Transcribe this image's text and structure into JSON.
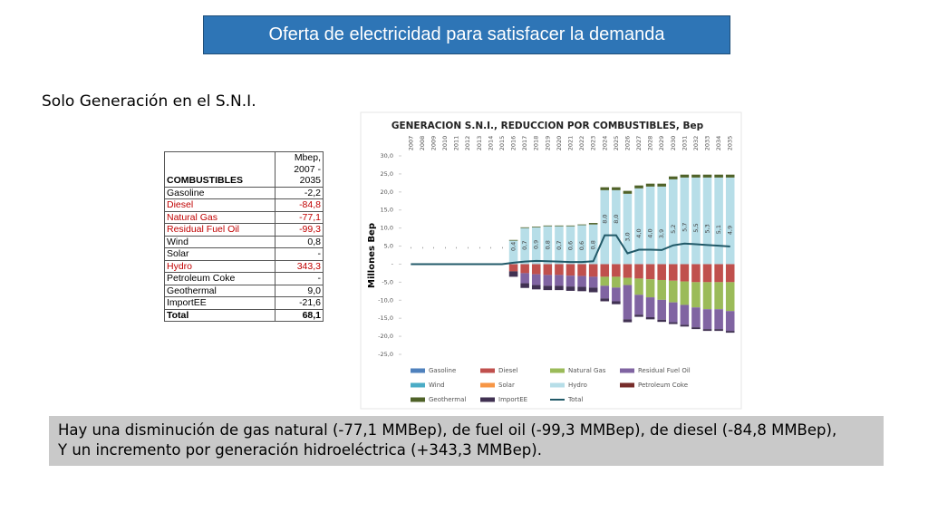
{
  "header": {
    "title": "Oferta de electricidad para satisfacer la demanda",
    "subtitle": "Solo Generación en el S.N.I."
  },
  "table": {
    "header": [
      "COMBUSTIBLES",
      "Mbep, 2007 - 2035"
    ],
    "rows": [
      [
        "Gasoline",
        "-2,2"
      ],
      [
        "Diesel",
        "-84,8"
      ],
      [
        "Natural Gas",
        "-77,1"
      ],
      [
        "Residual Fuel Oil",
        "-99,3"
      ],
      [
        "Wind",
        "0,8"
      ],
      [
        "Solar",
        "-"
      ],
      [
        "Hydro",
        "343,3"
      ],
      [
        "Petroleum Coke",
        "-"
      ],
      [
        "Geothermal",
        "9,0"
      ],
      [
        "ImportEE",
        "-21,6"
      ],
      [
        "Total",
        "68,1"
      ]
    ]
  },
  "note": [
    "Hay una disminución de gas natural (-77,1 MMBep), de fuel oil (-99,3 MMBep), de diesel (-84,8 MMBep),",
    "Y un incremento por generación hidroeléctrica (+343,3 MMBep)."
  ],
  "chart_data": {
    "type": "stacked_bar",
    "title": "GENERACION S.N.I., REDUCCION POR COMBUSTIBLES, Bep",
    "ylabel": "Millones Bep",
    "categories": [
      "2007",
      "2008",
      "2009",
      "2010",
      "2011",
      "2012",
      "2013",
      "2014",
      "2015",
      "2016",
      "2017",
      "2018",
      "2019",
      "2020",
      "2021",
      "2022",
      "2023",
      "2024",
      "2025",
      "2026",
      "2027",
      "2028",
      "2029",
      "2030",
      "2031",
      "2032",
      "2033",
      "2034",
      "2035"
    ],
    "ylim": [
      -25,
      30
    ],
    "yticks": [
      {
        "value": -25,
        "label": "-25,0"
      },
      {
        "value": -20,
        "label": "-20,0"
      },
      {
        "value": -15,
        "label": "-15,0"
      },
      {
        "value": -10,
        "label": "-10,0"
      },
      {
        "value": -5,
        "label": "-5,0"
      },
      {
        "value": 0,
        "label": "-"
      },
      {
        "value": 5,
        "label": "5,0"
      },
      {
        "value": 10,
        "label": "10,0"
      },
      {
        "value": 15,
        "label": "15,0"
      },
      {
        "value": 20,
        "label": "20,0"
      },
      {
        "value": 25,
        "label": "25,0"
      },
      {
        "value": 30,
        "label": "30,0"
      }
    ],
    "series": [
      {
        "name": "Gasoline",
        "color": "#4f81bd",
        "values": [
          0,
          0,
          0,
          0,
          0,
          0,
          0,
          0,
          0,
          0,
          0,
          0,
          0,
          0,
          0,
          0,
          0,
          0,
          0,
          0,
          0,
          0,
          0,
          0,
          0,
          0,
          0,
          0,
          0
        ]
      },
      {
        "name": "Diesel",
        "color": "#c0504d",
        "values": [
          0,
          0,
          0,
          0,
          0,
          0,
          0,
          0,
          0,
          -2,
          -2.5,
          -2.8,
          -3,
          -3,
          -3.2,
          -3.3,
          -3.5,
          -3.5,
          -3.5,
          -3.8,
          -4,
          -4.2,
          -4.4,
          -4.6,
          -4.8,
          -5,
          -5,
          -5,
          -5
        ]
      },
      {
        "name": "Natural Gas",
        "color": "#9bbb59",
        "values": [
          0,
          0,
          0,
          0,
          0,
          0,
          0,
          0,
          0,
          0,
          0,
          0,
          0,
          0,
          0,
          0,
          0,
          -2.5,
          -3,
          -2,
          -4.5,
          -5,
          -5.5,
          -6,
          -6.5,
          -7,
          -7.5,
          -7.5,
          -8
        ]
      },
      {
        "name": "Residual Fuel Oil",
        "color": "#8064a2",
        "values": [
          0,
          0,
          0,
          0,
          0,
          0,
          0,
          0,
          0,
          0,
          -2.8,
          -3,
          -3,
          -3,
          -3,
          -3,
          -3,
          -3.5,
          -3.8,
          -9.5,
          -5.5,
          -5.5,
          -5.5,
          -5.5,
          -5.5,
          -5.5,
          -5.5,
          -5.5,
          -5.5
        ]
      },
      {
        "name": "Wind",
        "color": "#4bacc6",
        "values": [
          0,
          0,
          0,
          0,
          0,
          0,
          0,
          0,
          0,
          0,
          0,
          0,
          0,
          0,
          0,
          0,
          0,
          0,
          0,
          0,
          0,
          0,
          0,
          0,
          0,
          0,
          0,
          0,
          0
        ]
      },
      {
        "name": "Solar",
        "color": "#f79646",
        "values": [
          0,
          0,
          0,
          0,
          0,
          0,
          0,
          0,
          0,
          0,
          0,
          0,
          0,
          0,
          0,
          0,
          0,
          0,
          0,
          0,
          0,
          0,
          0,
          0,
          0,
          0,
          0,
          0,
          0
        ]
      },
      {
        "name": "Hydro",
        "color": "#b7dee8",
        "values": [
          0,
          0,
          0,
          0,
          0,
          0,
          0,
          0,
          0,
          6.5,
          10,
          10.2,
          10.5,
          10.5,
          10.5,
          10.8,
          11,
          20.5,
          20.5,
          19.5,
          21,
          21.5,
          21.5,
          23.5,
          24,
          24,
          24,
          24,
          24
        ]
      },
      {
        "name": "Petroleum Coke",
        "color": "#772c2a",
        "values": [
          0,
          0,
          0,
          0,
          0,
          0,
          0,
          0,
          0,
          0,
          0,
          0,
          0,
          0,
          0,
          0,
          0,
          0,
          0,
          0,
          0,
          0,
          0,
          0,
          0,
          0,
          0,
          0,
          0
        ]
      },
      {
        "name": "Geothermal",
        "color": "#4f6228",
        "values": [
          0,
          0,
          0,
          0,
          0,
          0,
          0,
          0,
          0,
          0.2,
          0.2,
          0.2,
          0.2,
          0.2,
          0.2,
          0.2,
          0.4,
          0.8,
          0.8,
          0.8,
          0.8,
          0.8,
          0.8,
          0.8,
          0.8,
          0.8,
          0.8,
          0.8,
          0.8
        ]
      },
      {
        "name": "ImportEE",
        "color": "#403152",
        "values": [
          0,
          0,
          0,
          0,
          0,
          0,
          0,
          0,
          0,
          -1.5,
          -1.3,
          -1.2,
          -1.2,
          -1.2,
          -1.2,
          -1.2,
          -1.3,
          -0.8,
          -0.8,
          -0.8,
          -0.6,
          -0.6,
          -0.6,
          -0.5,
          -0.5,
          -0.5,
          -0.5,
          -0.5,
          -0.5
        ]
      },
      {
        "name": "Total",
        "color": "#215968",
        "line": true,
        "values": [
          0,
          0,
          0,
          0,
          0,
          0,
          0,
          0,
          0,
          0.4,
          0.7,
          0.9,
          0.8,
          0.7,
          0.6,
          0.6,
          0.8,
          8.0,
          8.0,
          3.0,
          4.0,
          4.0,
          3.9,
          5.2,
          5.7,
          5.5,
          5.3,
          5.1,
          4.9
        ],
        "value_labels": [
          "-",
          "-",
          "-",
          "-",
          "-",
          "-",
          "-",
          "-",
          "-",
          "0,4",
          "0,7",
          "0,9",
          "0,8",
          "0,7",
          "0,6",
          "0,6",
          "0,8",
          "8,0",
          "8,0",
          "3,0",
          "4,0",
          "4,0",
          "3,9",
          "5,2",
          "5,7",
          "5,5",
          "5,3",
          "5,1",
          "4,9"
        ]
      }
    ]
  }
}
